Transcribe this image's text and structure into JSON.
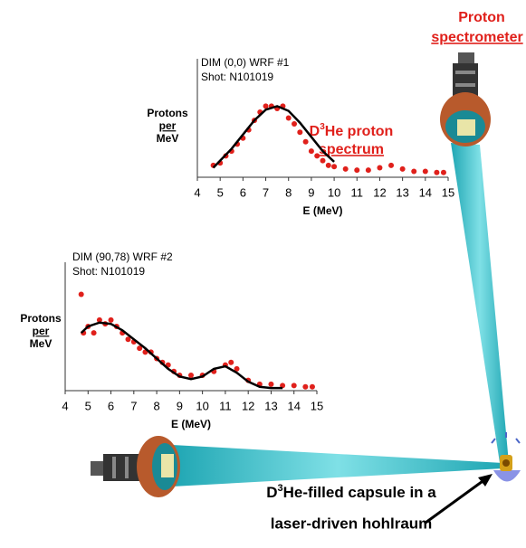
{
  "chart_data": [
    {
      "type": "scatter",
      "title": "DIM (0,0) WRF #1",
      "subtitle": "Shot:  N101019",
      "ylabel": [
        "Protons",
        "per",
        "MeV"
      ],
      "xlabel": "E (MeV)",
      "xlim": [
        4,
        15
      ],
      "xticks": [
        4,
        5,
        6,
        7,
        8,
        9,
        10,
        11,
        12,
        13,
        14,
        15
      ],
      "ylim": [
        0,
        1
      ],
      "annotation": {
        "pre": "D",
        "sup": "3",
        "post": "He proton",
        "line2": "spectrum",
        "color": "#e0201b"
      },
      "series": [
        {
          "mode": "markers",
          "color": "#e0201b",
          "x": [
            4.7,
            5,
            5.25,
            5.5,
            5.75,
            6,
            6.25,
            6.5,
            6.75,
            7,
            7.25,
            7.5,
            7.75,
            8,
            8.25,
            8.5,
            8.75,
            9,
            9.25,
            9.5,
            9.75,
            10,
            10.5,
            11,
            11.5,
            12,
            12.5,
            13,
            13.5,
            14,
            14.5,
            14.8
          ],
          "values": [
            0.1,
            0.12,
            0.18,
            0.22,
            0.28,
            0.33,
            0.4,
            0.48,
            0.55,
            0.6,
            0.6,
            0.58,
            0.6,
            0.5,
            0.45,
            0.38,
            0.3,
            0.22,
            0.18,
            0.14,
            0.1,
            0.09,
            0.07,
            0.06,
            0.06,
            0.08,
            0.1,
            0.07,
            0.05,
            0.05,
            0.04,
            0.04
          ]
        },
        {
          "mode": "lines",
          "color": "#000000",
          "x": [
            4.7,
            5,
            5.5,
            6,
            6.5,
            7,
            7.5,
            8,
            8.5,
            9,
            9.5,
            10
          ],
          "values": [
            0.08,
            0.14,
            0.24,
            0.36,
            0.48,
            0.57,
            0.6,
            0.56,
            0.46,
            0.34,
            0.22,
            0.13
          ]
        }
      ]
    },
    {
      "type": "scatter",
      "title": "DIM (90,78) WRF #2",
      "subtitle": "Shot:  N101019",
      "ylabel": [
        "Protons",
        "per",
        "MeV"
      ],
      "xlabel": "E (MeV)",
      "xlim": [
        4,
        15
      ],
      "xticks": [
        4,
        5,
        6,
        7,
        8,
        9,
        10,
        11,
        12,
        13,
        14,
        15
      ],
      "ylim": [
        0,
        1
      ],
      "series": [
        {
          "mode": "markers",
          "color": "#e0201b",
          "x": [
            4.7,
            4.8,
            5,
            5.25,
            5.5,
            5.75,
            6,
            6.25,
            6.5,
            6.75,
            7,
            7.25,
            7.5,
            7.75,
            8,
            8.25,
            8.5,
            8.75,
            9,
            9.5,
            10,
            10.5,
            11,
            11.25,
            11.5,
            12,
            12.5,
            13,
            13.5,
            14,
            14.5,
            14.8
          ],
          "values": [
            0.75,
            0.45,
            0.5,
            0.45,
            0.55,
            0.52,
            0.55,
            0.5,
            0.45,
            0.4,
            0.38,
            0.33,
            0.3,
            0.3,
            0.25,
            0.22,
            0.2,
            0.15,
            0.12,
            0.12,
            0.12,
            0.15,
            0.2,
            0.22,
            0.17,
            0.08,
            0.05,
            0.05,
            0.04,
            0.04,
            0.03,
            0.03
          ]
        },
        {
          "mode": "lines",
          "color": "#000000",
          "x": [
            4.7,
            5,
            5.5,
            6,
            6.5,
            7,
            7.5,
            8,
            8.5,
            9,
            9.5,
            10,
            10.5,
            11,
            11.5,
            12,
            12.5,
            13,
            13.5
          ],
          "values": [
            0.45,
            0.5,
            0.53,
            0.52,
            0.47,
            0.4,
            0.33,
            0.25,
            0.17,
            0.11,
            0.09,
            0.11,
            0.17,
            0.19,
            0.14,
            0.07,
            0.03,
            0.02,
            0.02
          ]
        }
      ]
    }
  ],
  "spectrometer_label": {
    "line1": "Proton",
    "line2": "spectrometer"
  },
  "capsule_label": {
    "pre": "D",
    "sup": "3",
    "post": "He-filled capsule in a",
    "line2": "laser-driven hohlraum"
  }
}
